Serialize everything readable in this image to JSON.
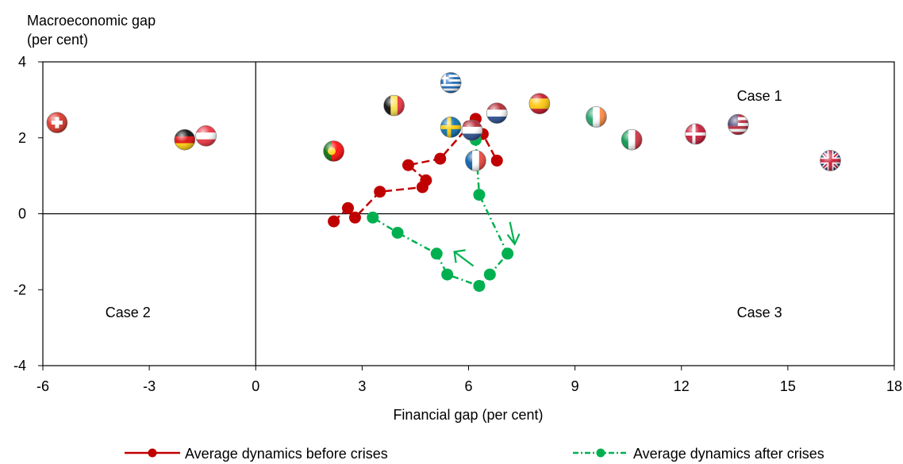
{
  "chart_data": {
    "type": "scatter",
    "title": "",
    "ylabel_lines": [
      "Macroeconomic gap",
      "(per cent)"
    ],
    "xlabel": "Financial gap (per cent)",
    "xlim": [
      -6,
      18
    ],
    "ylim": [
      -4,
      4
    ],
    "xticks": [
      -6,
      -3,
      0,
      3,
      6,
      9,
      12,
      15,
      18
    ],
    "yticks": [
      -4,
      -2,
      0,
      2,
      4
    ],
    "xtick_labels": [
      "-6",
      "-3",
      "0",
      "3",
      "6",
      "9",
      "12",
      "15",
      "18"
    ],
    "ytick_labels": [
      "-4",
      "-2",
      "0",
      "2",
      "4"
    ],
    "grid": false,
    "legend_position": "bottom",
    "annotations": [
      {
        "text": "Case 1",
        "x": 14.2,
        "y": 3.1
      },
      {
        "text": "Case 2",
        "x": -3.6,
        "y": -2.6
      },
      {
        "text": "Case 3",
        "x": 14.2,
        "y": -2.6
      }
    ],
    "series": [
      {
        "name": "Average dynamics before crises",
        "color": "#c00000",
        "line_style": "dashed",
        "x": [
          2.2,
          2.6,
          2.8,
          3.5,
          4.7,
          4.8,
          4.3,
          5.2,
          6.0,
          6.2,
          6.4,
          6.8
        ],
        "y": [
          -0.2,
          0.15,
          -0.1,
          0.58,
          0.7,
          0.88,
          1.28,
          1.45,
          2.3,
          2.5,
          2.1,
          1.4
        ]
      },
      {
        "name": "Average dynamics after crises",
        "color": "#00b050",
        "line_style": "dash-dot",
        "x": [
          6.2,
          6.3,
          7.1,
          6.6,
          6.3,
          5.4,
          5.1,
          4.0,
          3.3
        ],
        "y": [
          1.95,
          0.5,
          -1.05,
          -1.6,
          -1.9,
          -1.6,
          -1.05,
          -0.5,
          -0.1
        ]
      }
    ],
    "arrows": [
      {
        "series": "Average dynamics after crises",
        "direction": "down",
        "x": 7.3,
        "y": -0.8
      },
      {
        "series": "Average dynamics after crises",
        "direction": "up-left",
        "x": 5.6,
        "y": -1.0
      }
    ],
    "flag_points": [
      {
        "icon": "flag-switzerland-icon",
        "x": -5.6,
        "y": 2.4
      },
      {
        "icon": "flag-germany-icon",
        "x": -2.0,
        "y": 1.95
      },
      {
        "icon": "flag-austria-icon",
        "x": -1.4,
        "y": 2.05
      },
      {
        "icon": "flag-portugal-icon",
        "x": 2.2,
        "y": 1.65
      },
      {
        "icon": "flag-belgium-icon",
        "x": 3.9,
        "y": 2.85
      },
      {
        "icon": "flag-greece-icon",
        "x": 5.5,
        "y": 3.45
      },
      {
        "icon": "flag-sweden-icon",
        "x": 5.5,
        "y": 2.28
      },
      {
        "icon": "flag-netherlands-icon",
        "x": 6.1,
        "y": 2.2
      },
      {
        "icon": "flag-france-icon",
        "x": 6.2,
        "y": 1.4
      },
      {
        "icon": "flag-netherlands-icon",
        "x": 6.8,
        "y": 2.65
      },
      {
        "icon": "flag-spain-icon",
        "x": 8.0,
        "y": 2.9
      },
      {
        "icon": "flag-ireland-icon",
        "x": 9.6,
        "y": 2.55
      },
      {
        "icon": "flag-italy-icon",
        "x": 10.6,
        "y": 1.95
      },
      {
        "icon": "flag-denmark-icon",
        "x": 12.4,
        "y": 2.1
      },
      {
        "icon": "flag-usa-icon",
        "x": 13.6,
        "y": 2.35
      },
      {
        "icon": "flag-uk-icon",
        "x": 16.2,
        "y": 1.4
      }
    ]
  }
}
